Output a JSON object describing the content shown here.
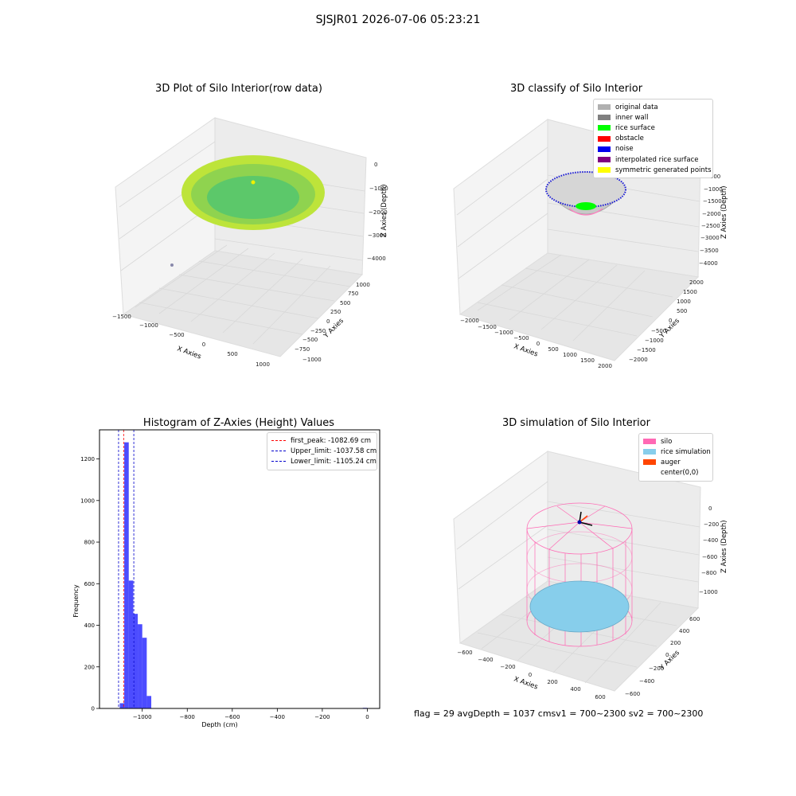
{
  "suptitle": "SJSJR01 2026-07-06 05:23:21",
  "footer": "flag = 29  avgDepth = 1037 cmsv1 = 700~2300  sv2 = 700~2300",
  "panels": {
    "raw": {
      "title": "3D Plot of Silo Interior(row data)",
      "xlabel": "X Axies",
      "ylabel": "Y Axies",
      "zlabel": "Z Axies (Depth)",
      "xticks": [
        "−1500",
        "−1000",
        "−500",
        "0",
        "500",
        "1000"
      ],
      "yticks": [
        "−1000",
        "−750",
        "−500",
        "−250",
        "0",
        "250",
        "500",
        "750",
        "1000"
      ],
      "zticks": [
        "0",
        "−1000",
        "−2000",
        "−3000",
        "−4000"
      ]
    },
    "classify": {
      "title": "3D classify of Silo Interior",
      "xlabel": "X Axies",
      "ylabel": "Y Axies",
      "zlabel": "Z Axies (Depth)",
      "xticks": [
        "−2000",
        "−1500",
        "−1000",
        "−500",
        "0",
        "500",
        "1000",
        "1500",
        "2000"
      ],
      "yticks": [
        "−2000",
        "−1500",
        "−1000",
        "−500",
        "0",
        "500",
        "1000",
        "1500",
        "2000"
      ],
      "zticks": [
        "−500",
        "−1000",
        "−1500",
        "−2000",
        "−2500",
        "−3000",
        "−3500",
        "−4000"
      ],
      "legend": [
        {
          "label": "original data",
          "color": "#b0b0b0"
        },
        {
          "label": "inner wall",
          "color": "#808080"
        },
        {
          "label": "rice surface",
          "color": "#00ff00"
        },
        {
          "label": "obstacle",
          "color": "#ff0000"
        },
        {
          "label": "noise",
          "color": "#0000ee"
        },
        {
          "label": "interpolated rice surface",
          "color": "#800080"
        },
        {
          "label": "symmetric generated points",
          "color": "#ffff00"
        }
      ]
    },
    "histogram": {
      "title": "Histogram of Z-Axies (Height) Values",
      "xlabel": "Depth (cm)",
      "ylabel": "Frequency",
      "legend": [
        {
          "label": "first_peak: -1082.69 cm",
          "color": "#ff0000"
        },
        {
          "label": "Upper_limit: -1037.58 cm",
          "color": "#0000cc"
        },
        {
          "label": "Lower_limit: -1105.24 cm",
          "color": "#0000cc"
        }
      ]
    },
    "simulation": {
      "title": "3D simulation of Silo Interior",
      "xlabel": "X Axies",
      "ylabel": "Y Axies",
      "zlabel": "Z Axies (Depth)",
      "xticks": [
        "−600",
        "−400",
        "−200",
        "0",
        "200",
        "400",
        "600"
      ],
      "yticks": [
        "−600",
        "−400",
        "−200",
        "0",
        "200",
        "400",
        "600"
      ],
      "zticks": [
        "0",
        "−200",
        "−400",
        "−600",
        "−800",
        "−1000"
      ],
      "legend": [
        {
          "label": "silo",
          "color": "#ff69b4"
        },
        {
          "label": "rice simulation",
          "color": "#87ceeb"
        },
        {
          "label": "auger",
          "color": "#ff4500"
        },
        {
          "label": "center(0,0)",
          "color": ""
        }
      ]
    }
  },
  "chart_data": [
    {
      "type": "bar",
      "title": "Histogram of Z-Axies (Height) Values",
      "xlabel": "Depth (cm)",
      "ylabel": "Frequency",
      "xlim": [
        -1190,
        55
      ],
      "ylim": [
        0,
        1340
      ],
      "xticks": [
        -1000,
        -800,
        -600,
        -400,
        -200,
        0
      ],
      "yticks": [
        0,
        200,
        400,
        600,
        800,
        1000,
        1200
      ],
      "bar_color": "#0000ff",
      "bins": [
        {
          "x0": -1100,
          "x1": -1080,
          "count": 25
        },
        {
          "x0": -1080,
          "x1": -1060,
          "count": 1280
        },
        {
          "x0": -1060,
          "x1": -1040,
          "count": 615
        },
        {
          "x0": -1040,
          "x1": -1020,
          "count": 455
        },
        {
          "x0": -1020,
          "x1": -1000,
          "count": 405
        },
        {
          "x0": -1000,
          "x1": -980,
          "count": 340
        },
        {
          "x0": -980,
          "x1": -960,
          "count": 60
        },
        {
          "x0": -20,
          "x1": 0,
          "count": 3
        }
      ],
      "vlines": [
        {
          "label": "first_peak: -1082.69 cm",
          "x": -1082.69,
          "color": "#ff0000"
        },
        {
          "label": "Upper_limit: -1037.58 cm",
          "x": -1037.58,
          "color": "#0000cc"
        },
        {
          "label": "Lower_limit: -1105.24 cm",
          "x": -1105.24,
          "color": "#0000cc"
        }
      ],
      "grid": false,
      "legend_position": "top-right"
    }
  ]
}
